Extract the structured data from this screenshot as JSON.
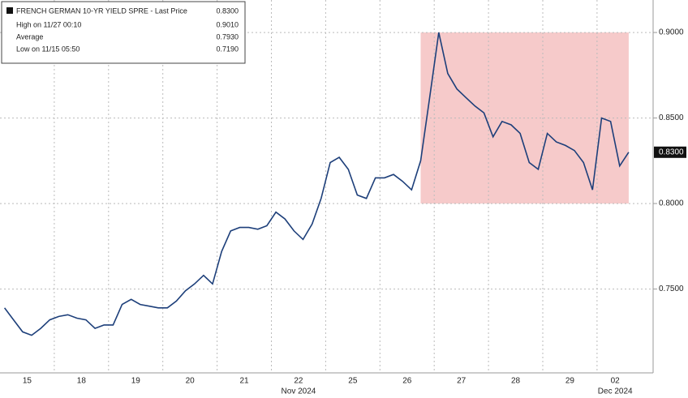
{
  "chart_data": {
    "type": "line",
    "legend": {
      "title": "FRENCH GERMAN 10-YR YIELD SPRE - Last Price",
      "last": "0.8300",
      "items": [
        [
          "High on 11/27 00:10",
          "0.9010"
        ],
        [
          "Average",
          "0.7930"
        ],
        [
          "Low on 11/15 05:50",
          "0.7190"
        ]
      ]
    },
    "categories": [
      "15",
      null,
      null,
      null,
      null,
      null,
      "18",
      null,
      null,
      null,
      null,
      null,
      "19",
      null,
      null,
      null,
      null,
      null,
      "20",
      null,
      null,
      null,
      null,
      null,
      "21",
      null,
      null,
      null,
      null,
      null,
      "22",
      null,
      null,
      null,
      null,
      null,
      "25",
      null,
      null,
      null,
      null,
      null,
      "26",
      null,
      null,
      null,
      null,
      null,
      "27",
      null,
      null,
      null,
      null,
      null,
      "28",
      null,
      null,
      null,
      null,
      null,
      "29",
      null,
      null,
      null,
      null,
      null,
      "02",
      null,
      null,
      null
    ],
    "months": [
      "Nov 2024",
      "Dec 2024"
    ],
    "series": [
      {
        "name": "FRENCH GERMAN 10-YR YIELD SPRE",
        "color": "#1d3f7a",
        "values": [
          0.739,
          0.732,
          0.725,
          0.723,
          0.727,
          0.732,
          0.734,
          0.735,
          0.733,
          0.732,
          0.727,
          0.729,
          0.729,
          0.741,
          0.744,
          0.741,
          0.74,
          0.739,
          0.739,
          0.743,
          0.749,
          0.753,
          0.758,
          0.753,
          0.772,
          0.784,
          0.786,
          0.786,
          0.785,
          0.787,
          0.795,
          0.791,
          0.784,
          0.779,
          0.788,
          0.803,
          0.824,
          0.827,
          0.82,
          0.805,
          0.803,
          0.815,
          0.815,
          0.817,
          0.813,
          0.808,
          0.825,
          0.862,
          0.9,
          0.876,
          0.867,
          0.862,
          0.857,
          0.853,
          0.839,
          0.848,
          0.846,
          0.841,
          0.824,
          0.82,
          0.841,
          0.836,
          0.834,
          0.831,
          0.824,
          0.808,
          0.85,
          0.848,
          0.822,
          0.83
        ]
      }
    ],
    "last_price": {
      "value": 0.83,
      "label": "0.8300"
    },
    "highlight": {
      "y": [
        0.8,
        0.9
      ],
      "from": 46,
      "to": 69,
      "color": "#f6caca"
    },
    "ylim": [
      0.701,
      0.919
    ],
    "yticks": [
      {
        "value": 0.75,
        "label": "0.7500"
      },
      {
        "value": 0.8,
        "label": "0.8000"
      },
      {
        "value": 0.85,
        "label": "0.8500"
      },
      {
        "value": 0.9,
        "label": "0.9000"
      }
    ],
    "grid": true
  }
}
